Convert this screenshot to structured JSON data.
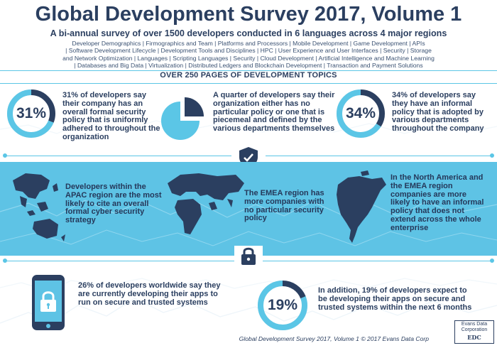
{
  "header": {
    "title": "Global Development Survey 2017, Volume 1",
    "subtitle": "A bi-annual survey of over 1500 developers conducted in 6 languages across 4 major regions",
    "topics_line1": "Developer Demographics | Firmographics and Team | Platforms and Processors | Mobile Development | Game Development | APIs",
    "topics_line2": "| Software Development Lifecycle | Development Tools and Disciplines | HPC | User Experience and User Interfaces | Security | Storage",
    "topics_line3": "and Network Optimization | Languages | Scripting Languages | Security | Cloud Development | Artificial Intelligence and Machine Learning",
    "topics_line4": "| Databases and Big Data | Virtualization | Distributed Ledgers and Blockchain Development | Transaction and Payment Solutions"
  },
  "pages_label": "OVER 250 PAGES OF DEVELOPMENT TOPICS",
  "stats": {
    "formal_policy": {
      "percent": 31,
      "label": "31%",
      "text": "31% of developers say their company has an overall formal security policy that is uniformly adhered to throughout the organization"
    },
    "no_policy": {
      "fraction": 0.25,
      "text": "A quarter of developers say their organization either has no particular policy or one that is piecemeal and defined by the various departments themselves"
    },
    "informal_policy": {
      "percent": 34,
      "label": "34%",
      "text": "34% of developers say they have an informal policy that is adopted by various departments throughout the company"
    }
  },
  "regions": {
    "apac": "Developers within the APAC region are the most likely to cite an overall formal cyber security strategy",
    "emea": "The EMEA region has more companies with no particular security policy",
    "na_emea": "In the North America and the EMEA region companies are more likely to have an informal policy that does not extend across the whole enterprise"
  },
  "bottom": {
    "secure_now": "26% of developers worldwide say they are currently developing their apps to run on secure and trusted systems",
    "future": {
      "percent": 19,
      "label": "19%",
      "text": "In addition, 19% of developers expect to be developing their apps on secure and trusted systems within the next 6 months"
    }
  },
  "footer": {
    "credit": "Global Development Survey 2017, Volume 1 © 2017 Evans Data Corp",
    "logo_line1": "Evans Data",
    "logo_line2": "Corporation",
    "logo_mark": "EDC"
  },
  "colors": {
    "navy": "#2b3f60",
    "accent": "#5bc6e6",
    "band": "#5ec3e5",
    "track": "#d9dde3"
  }
}
